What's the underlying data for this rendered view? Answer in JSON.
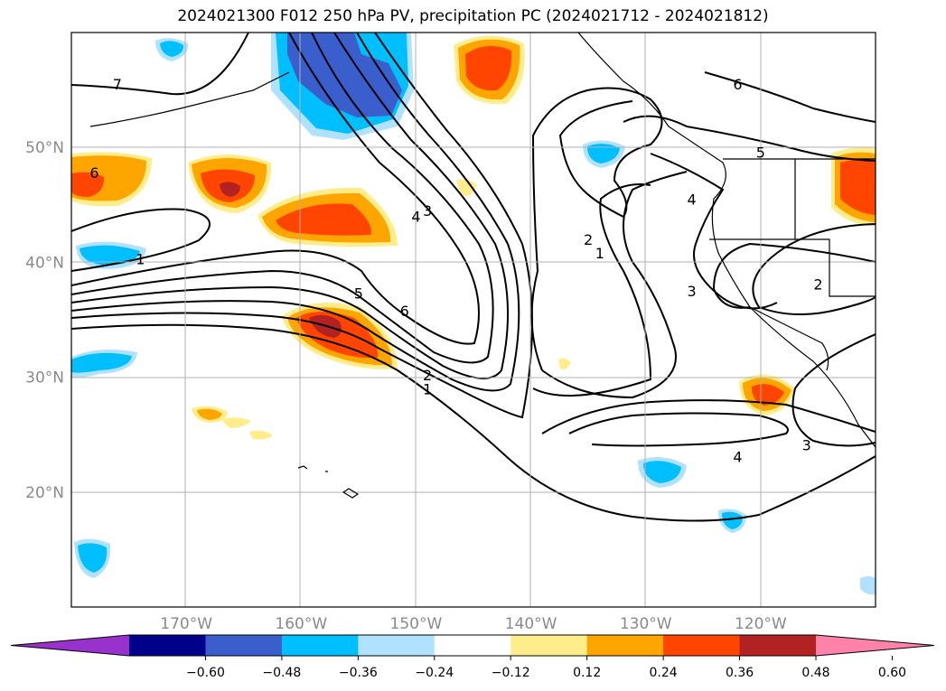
{
  "title": "2024021300 F012 250 hPa PV, precipitation PC (2024021712 - 2024021812)",
  "map": {
    "lon_range": [
      -180,
      -110
    ],
    "lat_range": [
      10,
      60
    ],
    "lat_labels": [
      "50°N",
      "40°N",
      "30°N",
      "20°N"
    ],
    "lat_values": [
      50,
      40,
      30,
      20
    ],
    "lon_labels": [
      "170°W",
      "160°W",
      "150°W",
      "140°W",
      "130°W",
      "120°W"
    ],
    "lon_values": [
      -170,
      -160,
      -150,
      -140,
      -130,
      -120
    ],
    "gridlines": true
  },
  "contour_labels": [
    {
      "text": "7",
      "lon": -176,
      "lat": 55.5
    },
    {
      "text": "6",
      "lon": -178,
      "lat": 47.8
    },
    {
      "text": "1",
      "lon": -174,
      "lat": 40.3
    },
    {
      "text": "3",
      "lon": -149,
      "lat": 44.5
    },
    {
      "text": "4",
      "lon": -150,
      "lat": 44.0
    },
    {
      "text": "5",
      "lon": -155,
      "lat": 37.3
    },
    {
      "text": "6",
      "lon": -151,
      "lat": 35.8
    },
    {
      "text": "2",
      "lon": -149,
      "lat": 30.2
    },
    {
      "text": "1",
      "lon": -149,
      "lat": 29.0
    },
    {
      "text": "2",
      "lon": -135,
      "lat": 42.0
    },
    {
      "text": "1",
      "lon": -134,
      "lat": 40.8
    },
    {
      "text": "3",
      "lon": -126,
      "lat": 37.5
    },
    {
      "text": "4",
      "lon": -126,
      "lat": 45.5
    },
    {
      "text": "5",
      "lon": -120,
      "lat": 49.6
    },
    {
      "text": "6",
      "lon": -122,
      "lat": 55.5
    },
    {
      "text": "2",
      "lon": -115,
      "lat": 38.1
    },
    {
      "text": "4",
      "lon": -122,
      "lat": 23.1
    },
    {
      "text": "3",
      "lon": -116,
      "lat": 24.1
    }
  ],
  "colorbar": {
    "ticks": [
      "−0.60",
      "−0.48",
      "−0.36",
      "−0.24",
      "−0.12",
      "0.12",
      "0.24",
      "0.36",
      "0.48",
      "0.60"
    ],
    "colors": [
      "#9932cc",
      "#00008b",
      "#3a5fcd",
      "#00bfff",
      "#b0e2ff",
      "#ffffff",
      "#ffec8b",
      "#ffa500",
      "#ff4500",
      "#b22222",
      "#ff82ab"
    ]
  },
  "legend_colors": {
    "coast": "#000000",
    "grid": "#b0b0b0"
  }
}
